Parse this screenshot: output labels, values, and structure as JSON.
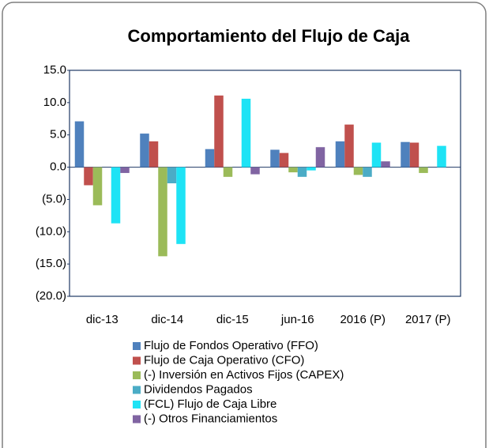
{
  "chart_data": {
    "type": "bar",
    "title": "Comportamiento del Flujo de Caja",
    "categories": [
      "dic-13",
      "dic-14",
      "dic-15",
      "jun-16",
      "2016 (P)",
      "2017 (P)"
    ],
    "series": [
      {
        "name": "Flujo de Fondos Operativo (FFO)",
        "color": "#4f81bd",
        "values": [
          7.1,
          5.2,
          2.8,
          2.7,
          4.0,
          3.9
        ]
      },
      {
        "name": "Flujo de Caja Operativo (CFO)",
        "color": "#c0504d",
        "values": [
          -2.8,
          4.0,
          11.1,
          2.2,
          6.6,
          3.8
        ]
      },
      {
        "name": "(-) Inversión en Activos Fijos (CAPEX)",
        "color": "#9bbb59",
        "values": [
          -5.9,
          -13.8,
          -1.5,
          -0.8,
          -1.2,
          -0.9
        ]
      },
      {
        "name": "Dividendos Pagados",
        "color": "#4bacc6",
        "values": [
          0,
          -2.5,
          0,
          -1.5,
          -1.5,
          0
        ]
      },
      {
        "name": "(FCL) Flujo de Caja Libre",
        "color": "#1ee3f5",
        "values": [
          -8.7,
          -11.9,
          10.6,
          -0.5,
          3.8,
          3.3
        ]
      },
      {
        "name": "(-) Otros Financiamientos",
        "color": "#8064a2",
        "values": [
          -0.9,
          0,
          -1.1,
          3.1,
          0.9,
          0
        ]
      }
    ],
    "ylim": [
      -20,
      15
    ],
    "yticks": [
      {
        "value": -20,
        "label": "(20.0)"
      },
      {
        "value": -15,
        "label": "(15.0)"
      },
      {
        "value": -10,
        "label": "(10.0)"
      },
      {
        "value": -5,
        "label": "(5.0)"
      },
      {
        "value": 0,
        "label": "0.0"
      },
      {
        "value": 5,
        "label": "5.0"
      },
      {
        "value": 10,
        "label": "10.0"
      },
      {
        "value": 15,
        "label": "15.0"
      }
    ],
    "grid": false
  }
}
